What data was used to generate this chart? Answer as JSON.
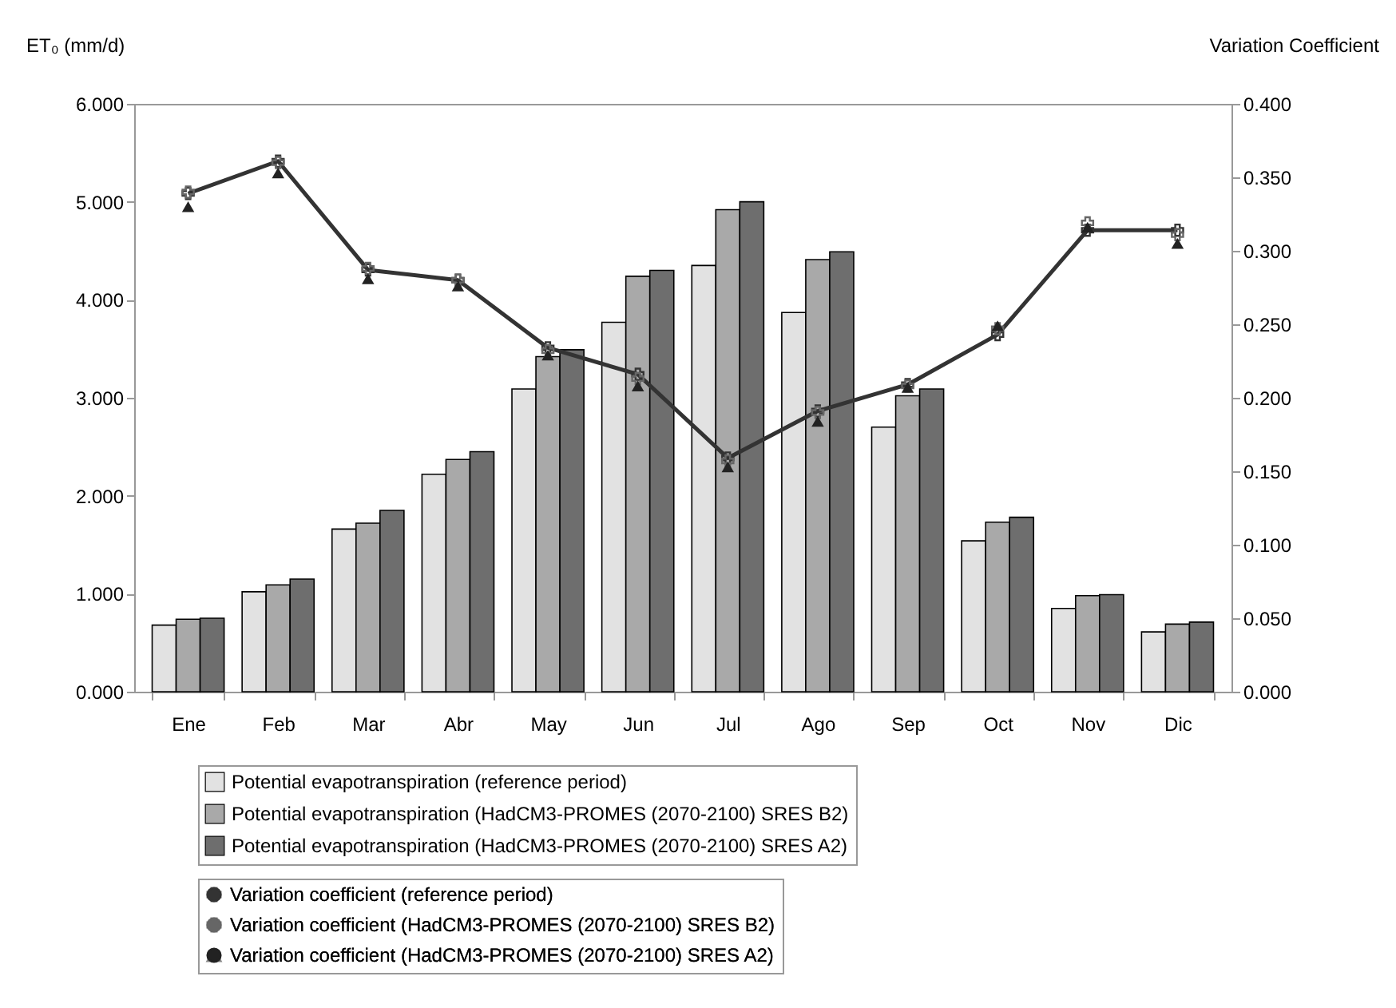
{
  "chart_data": {
    "type": "bar",
    "ylabel": "ET₀ (mm/d)",
    "y2label": "Variation Coefficient",
    "categories": [
      "Ene",
      "Feb",
      "Mar",
      "Abr",
      "May",
      "Jun",
      "Jul",
      "Ago",
      "Sep",
      "Oct",
      "Nov",
      "Dic"
    ],
    "ylim": [
      0,
      6
    ],
    "yticks": [
      {
        "value": 0,
        "label": "0.000"
      },
      {
        "value": 1,
        "label": "1.000"
      },
      {
        "value": 2,
        "label": "2.000"
      },
      {
        "value": 3,
        "label": "3.000"
      },
      {
        "value": 4,
        "label": "4.000"
      },
      {
        "value": 5,
        "label": "5.000"
      },
      {
        "value": 6,
        "label": "6.000"
      }
    ],
    "y2lim": [
      0,
      0.4
    ],
    "y2ticks": [
      {
        "value": 0,
        "label": "0.000"
      },
      {
        "value": 0.05,
        "label": "0.050"
      },
      {
        "value": 0.1,
        "label": "0.100"
      },
      {
        "value": 0.15,
        "label": "0.150"
      },
      {
        "value": 0.2,
        "label": "0.200"
      },
      {
        "value": 0.25,
        "label": "0.250"
      },
      {
        "value": 0.3,
        "label": "0.300"
      },
      {
        "value": 0.35,
        "label": "0.350"
      },
      {
        "value": 0.4,
        "label": "0.400"
      }
    ],
    "grid": false,
    "legend": "bottom",
    "series": [
      {
        "name": "Potential evapotranspiration (reference period)",
        "type": "bar",
        "color": "#e2e2e2",
        "values": [
          0.68,
          1.02,
          1.66,
          2.22,
          3.09,
          3.77,
          4.35,
          3.87,
          2.7,
          1.54,
          0.85,
          0.61
        ]
      },
      {
        "name": "Potential evapotranspiration (HadCM3-PROMES (2070-2100) SRES B2)",
        "type": "bar",
        "color": "#a9a9a9",
        "values": [
          0.74,
          1.09,
          1.72,
          2.37,
          3.42,
          4.24,
          4.92,
          4.41,
          3.02,
          1.73,
          0.98,
          0.69
        ]
      },
      {
        "name": "Potential evapotranspiration (HadCM3-PROMES (2070-2100) SRES A2)",
        "type": "bar",
        "color": "#6e6e6e",
        "values": [
          0.75,
          1.15,
          1.85,
          2.45,
          3.49,
          4.3,
          5.0,
          4.49,
          3.09,
          1.78,
          0.99,
          0.71
        ]
      },
      {
        "name": "Variation coefficient (reference period)",
        "type": "line",
        "axis": "y2",
        "marker": "cross",
        "color": "#333333",
        "values": [
          0.339,
          0.361,
          0.287,
          0.28,
          0.234,
          0.216,
          0.159,
          0.191,
          0.209,
          0.243,
          0.314,
          0.314
        ]
      },
      {
        "name": "Variation coefficient (HadCM3-PROMES (2070-2100) SRES B2)",
        "type": "scatter",
        "axis": "y2",
        "marker": "cross",
        "color": "#666666",
        "values": [
          0.34,
          0.36,
          0.288,
          0.28,
          0.232,
          0.213,
          0.157,
          0.19,
          0.208,
          0.247,
          0.319,
          0.311
        ]
      },
      {
        "name": "Variation coefficient (HadCM3-PROMES (2070-2100) SRES A2)",
        "type": "scatter",
        "axis": "y2",
        "marker": "triangle",
        "color": "#222222",
        "values": [
          0.33,
          0.353,
          0.281,
          0.276,
          0.229,
          0.208,
          0.153,
          0.184,
          0.207,
          0.249,
          0.316,
          0.305
        ]
      }
    ]
  }
}
